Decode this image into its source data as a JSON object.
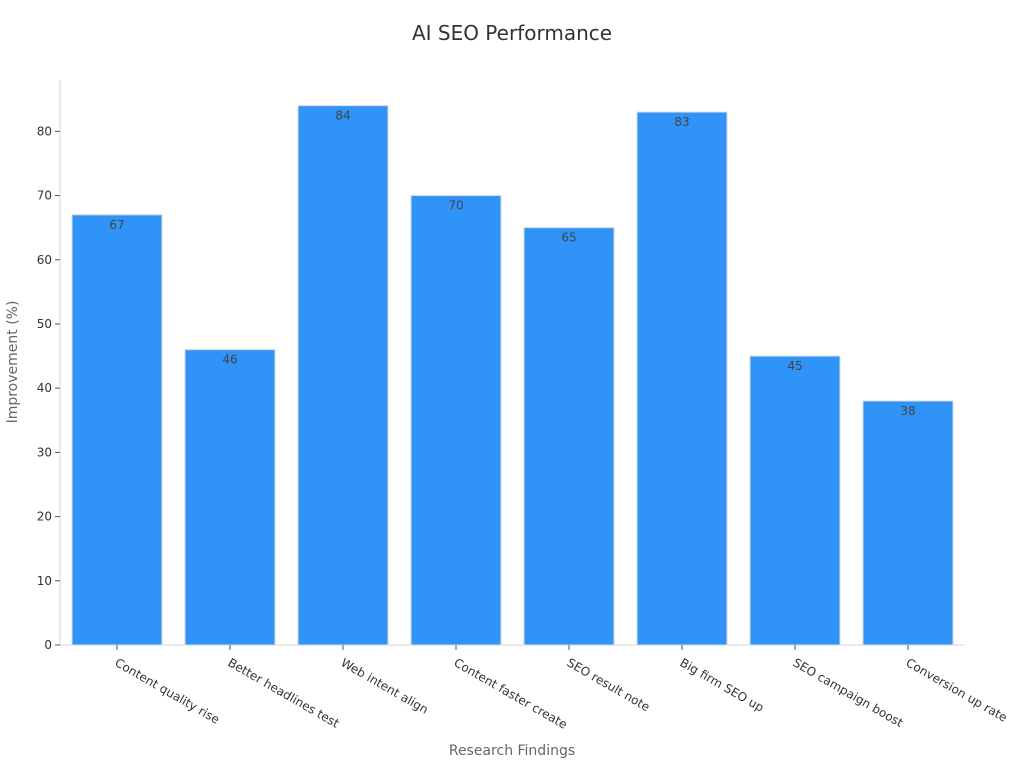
{
  "chart_data": {
    "type": "bar",
    "title": "AI SEO Performance",
    "xlabel": "Research Findings",
    "ylabel": "Improvement (%)",
    "categories": [
      "Content quality rise",
      "Better headlines test",
      "Web intent align",
      "Content faster create",
      "SEO result note",
      "Big firm SEO up",
      "SEO campaign boost",
      "Conversion up rate"
    ],
    "values": [
      67,
      46,
      84,
      70,
      65,
      83,
      45,
      38
    ],
    "ylim": [
      0,
      88
    ],
    "yticks": [
      0,
      10,
      20,
      30,
      40,
      50,
      60,
      70,
      80
    ],
    "grid": false,
    "legend": "none",
    "bar_color": "#2f93f8"
  }
}
